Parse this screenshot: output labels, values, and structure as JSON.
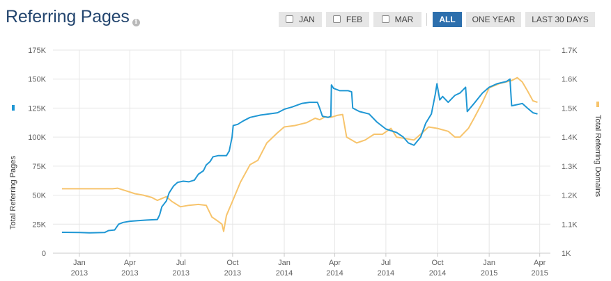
{
  "header": {
    "title": "Referring Pages",
    "info_icon": "info-icon"
  },
  "toolbar": {
    "buttons": [
      {
        "label": "JAN",
        "checkbox": true,
        "active": false
      },
      {
        "label": "FEB",
        "checkbox": true,
        "active": false
      },
      {
        "label": "MAR",
        "checkbox": true,
        "active": false
      },
      {
        "label": "ALL",
        "checkbox": false,
        "active": true
      },
      {
        "label": "ONE YEAR",
        "checkbox": false,
        "active": false
      },
      {
        "label": "LAST 30 DAYS",
        "checkbox": false,
        "active": false
      }
    ]
  },
  "chart_data": {
    "type": "line",
    "grid": true,
    "y_left": {
      "label": "Total Referring Pages",
      "min": 0,
      "max": 175000,
      "ticks": [
        "0",
        "25K",
        "50K",
        "75K",
        "100K",
        "125K",
        "150K",
        "175K"
      ]
    },
    "y_right": {
      "label": "Total Referring Domains",
      "min": 1000,
      "max": 1700,
      "ticks": [
        "1K",
        "1.1K",
        "1.2K",
        "1.3K",
        "1.4K",
        "1.5K",
        "1.6K",
        "1.7K"
      ]
    },
    "x": {
      "min": "2012-11-15",
      "max": "2015-04-20",
      "ticks": [
        {
          "date": "2013-01-01",
          "month": "Jan",
          "year": "2013"
        },
        {
          "date": "2013-04-01",
          "month": "Apr",
          "year": "2013"
        },
        {
          "date": "2013-07-01",
          "month": "Jul",
          "year": "2013"
        },
        {
          "date": "2013-10-01",
          "month": "Oct",
          "year": "2013"
        },
        {
          "date": "2014-01-01",
          "month": "Jan",
          "year": "2014"
        },
        {
          "date": "2014-04-01",
          "month": "Apr",
          "year": "2014"
        },
        {
          "date": "2014-07-01",
          "month": "Jul",
          "year": "2014"
        },
        {
          "date": "2014-10-01",
          "month": "Oct",
          "year": "2014"
        },
        {
          "date": "2015-01-01",
          "month": "Jan",
          "year": "2015"
        },
        {
          "date": "2015-04-01",
          "month": "Apr",
          "year": "2015"
        }
      ]
    },
    "series": [
      {
        "name": "Total Referring Pages",
        "axis": "left",
        "color": "#1f97d4",
        "points": [
          [
            "2012-12-01",
            18000
          ],
          [
            "2013-01-01",
            17800
          ],
          [
            "2013-01-20",
            17500
          ],
          [
            "2013-02-15",
            17800
          ],
          [
            "2013-02-22",
            19500
          ],
          [
            "2013-03-05",
            20000
          ],
          [
            "2013-03-12",
            25000
          ],
          [
            "2013-03-20",
            26500
          ],
          [
            "2013-04-01",
            27500
          ],
          [
            "2013-04-15",
            28000
          ],
          [
            "2013-05-01",
            28500
          ],
          [
            "2013-05-20",
            29000
          ],
          [
            "2013-05-24",
            33000
          ],
          [
            "2013-05-28",
            40000
          ],
          [
            "2013-06-05",
            45000
          ],
          [
            "2013-06-10",
            52000
          ],
          [
            "2013-06-18",
            58000
          ],
          [
            "2013-06-25",
            61000
          ],
          [
            "2013-07-05",
            62000
          ],
          [
            "2013-07-15",
            61500
          ],
          [
            "2013-07-25",
            63000
          ],
          [
            "2013-08-01",
            68000
          ],
          [
            "2013-08-10",
            71000
          ],
          [
            "2013-08-15",
            76000
          ],
          [
            "2013-08-22",
            79000
          ],
          [
            "2013-08-27",
            83000
          ],
          [
            "2013-09-05",
            84000
          ],
          [
            "2013-09-20",
            84000
          ],
          [
            "2013-09-25",
            88000
          ],
          [
            "2013-09-30",
            100000
          ],
          [
            "2013-10-02",
            110000
          ],
          [
            "2013-10-10",
            111000
          ],
          [
            "2013-10-20",
            114000
          ],
          [
            "2013-11-01",
            117000
          ],
          [
            "2013-11-20",
            119000
          ],
          [
            "2013-12-05",
            120000
          ],
          [
            "2013-12-20",
            121000
          ],
          [
            "2014-01-01",
            124000
          ],
          [
            "2014-01-15",
            126000
          ],
          [
            "2014-02-01",
            129000
          ],
          [
            "2014-02-15",
            130000
          ],
          [
            "2014-03-01",
            130000
          ],
          [
            "2014-03-05",
            125000
          ],
          [
            "2014-03-10",
            118000
          ],
          [
            "2014-03-20",
            117000
          ],
          [
            "2014-03-25",
            118000
          ],
          [
            "2014-03-26",
            145000
          ],
          [
            "2014-03-30",
            142000
          ],
          [
            "2014-04-10",
            140000
          ],
          [
            "2014-04-25",
            140000
          ],
          [
            "2014-05-01",
            139000
          ],
          [
            "2014-05-03",
            125000
          ],
          [
            "2014-05-15",
            122000
          ],
          [
            "2014-06-01",
            120000
          ],
          [
            "2014-06-15",
            113000
          ],
          [
            "2014-07-01",
            107000
          ],
          [
            "2014-07-20",
            104000
          ],
          [
            "2014-08-01",
            100000
          ],
          [
            "2014-08-10",
            95000
          ],
          [
            "2014-08-20",
            93000
          ],
          [
            "2014-09-01",
            100000
          ],
          [
            "2014-09-10",
            112000
          ],
          [
            "2014-09-20",
            120000
          ],
          [
            "2014-09-27",
            137000
          ],
          [
            "2014-09-30",
            146000
          ],
          [
            "2014-10-05",
            132000
          ],
          [
            "2014-10-10",
            135000
          ],
          [
            "2014-10-20",
            130000
          ],
          [
            "2014-11-01",
            136000
          ],
          [
            "2014-11-10",
            138000
          ],
          [
            "2014-11-20",
            143000
          ],
          [
            "2014-11-23",
            122000
          ],
          [
            "2014-12-05",
            129000
          ],
          [
            "2014-12-20",
            138000
          ],
          [
            "2015-01-01",
            143000
          ],
          [
            "2015-01-15",
            146000
          ],
          [
            "2015-02-01",
            148000
          ],
          [
            "2015-02-07",
            150000
          ],
          [
            "2015-02-10",
            127000
          ],
          [
            "2015-02-20",
            128000
          ],
          [
            "2015-03-01",
            129000
          ],
          [
            "2015-03-10",
            125000
          ],
          [
            "2015-03-20",
            121000
          ],
          [
            "2015-03-28",
            120000
          ]
        ]
      },
      {
        "name": "Total Referring Domains",
        "axis": "right",
        "color": "#f7c46c",
        "points": [
          [
            "2012-12-01",
            1222
          ],
          [
            "2013-01-01",
            1222
          ],
          [
            "2013-02-01",
            1222
          ],
          [
            "2013-03-01",
            1222
          ],
          [
            "2013-03-10",
            1224
          ],
          [
            "2013-03-25",
            1215
          ],
          [
            "2013-04-10",
            1205
          ],
          [
            "2013-04-25",
            1200
          ],
          [
            "2013-05-10",
            1192
          ],
          [
            "2013-05-20",
            1182
          ],
          [
            "2013-06-05",
            1195
          ],
          [
            "2013-06-15",
            1178
          ],
          [
            "2013-06-30",
            1160
          ],
          [
            "2013-07-15",
            1165
          ],
          [
            "2013-08-01",
            1168
          ],
          [
            "2013-08-15",
            1165
          ],
          [
            "2013-08-25",
            1125
          ],
          [
            "2013-09-05",
            1110
          ],
          [
            "2013-09-12",
            1100
          ],
          [
            "2013-09-15",
            1075
          ],
          [
            "2013-09-20",
            1130
          ],
          [
            "2013-10-01",
            1180
          ],
          [
            "2013-10-15",
            1245
          ],
          [
            "2013-11-01",
            1305
          ],
          [
            "2013-11-15",
            1320
          ],
          [
            "2013-12-01",
            1380
          ],
          [
            "2013-12-20",
            1415
          ],
          [
            "2014-01-01",
            1435
          ],
          [
            "2014-01-20",
            1440
          ],
          [
            "2014-02-10",
            1450
          ],
          [
            "2014-02-25",
            1465
          ],
          [
            "2014-03-05",
            1460
          ],
          [
            "2014-03-15",
            1470
          ],
          [
            "2014-03-25",
            1468
          ],
          [
            "2014-04-05",
            1475
          ],
          [
            "2014-04-15",
            1478
          ],
          [
            "2014-04-22",
            1400
          ],
          [
            "2014-05-01",
            1390
          ],
          [
            "2014-05-10",
            1380
          ],
          [
            "2014-05-25",
            1390
          ],
          [
            "2014-06-10",
            1410
          ],
          [
            "2014-06-25",
            1410
          ],
          [
            "2014-07-10",
            1430
          ],
          [
            "2014-07-20",
            1400
          ],
          [
            "2014-08-05",
            1395
          ],
          [
            "2014-08-20",
            1390
          ],
          [
            "2014-09-01",
            1410
          ],
          [
            "2014-09-15",
            1435
          ],
          [
            "2014-10-01",
            1430
          ],
          [
            "2014-10-20",
            1420
          ],
          [
            "2014-11-01",
            1400
          ],
          [
            "2014-11-10",
            1400
          ],
          [
            "2014-11-25",
            1430
          ],
          [
            "2014-12-05",
            1465
          ],
          [
            "2014-12-20",
            1520
          ],
          [
            "2015-01-01",
            1570
          ],
          [
            "2015-01-20",
            1585
          ],
          [
            "2015-02-10",
            1595
          ],
          [
            "2015-02-20",
            1605
          ],
          [
            "2015-03-01",
            1590
          ],
          [
            "2015-03-10",
            1560
          ],
          [
            "2015-03-20",
            1525
          ],
          [
            "2015-03-28",
            1520
          ]
        ]
      }
    ]
  }
}
